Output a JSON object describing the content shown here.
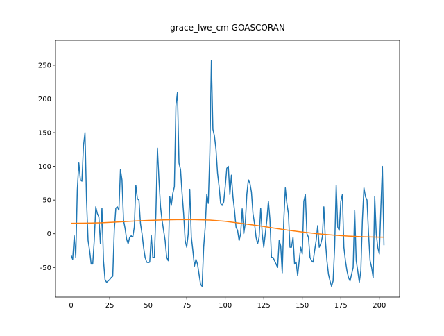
{
  "chart_data": {
    "type": "line",
    "title": "grace_lwe_cm GOASCORAN",
    "xlim": [
      -10.15,
      213.15
    ],
    "ylim": [
      -94,
      287
    ],
    "xticks": [
      0,
      25,
      50,
      75,
      100,
      125,
      150,
      175,
      200
    ],
    "yticks": [
      -50,
      0,
      50,
      100,
      150,
      200,
      250
    ],
    "series": [
      {
        "color": "#1f77b4",
        "x": [
          0,
          1,
          2,
          3,
          4,
          5,
          6,
          7,
          8,
          9,
          10,
          11,
          12,
          13,
          14,
          15,
          16,
          17,
          18,
          19,
          20,
          21,
          22,
          23,
          24,
          25,
          26,
          27,
          28,
          29,
          30,
          31,
          32,
          33,
          34,
          35,
          36,
          37,
          38,
          39,
          40,
          41,
          42,
          43,
          44,
          45,
          46,
          47,
          48,
          49,
          50,
          51,
          52,
          53,
          54,
          55,
          56,
          57,
          58,
          59,
          60,
          61,
          62,
          63,
          64,
          65,
          66,
          67,
          68,
          69,
          70,
          71,
          72,
          73,
          74,
          75,
          76,
          77,
          78,
          79,
          80,
          81,
          82,
          83,
          84,
          85,
          86,
          87,
          88,
          89,
          90,
          91,
          92,
          93,
          94,
          95,
          96,
          97,
          98,
          99,
          100,
          101,
          102,
          103,
          104,
          105,
          106,
          107,
          108,
          109,
          110,
          111,
          112,
          113,
          114,
          115,
          116,
          117,
          118,
          119,
          120,
          121,
          122,
          123,
          124,
          125,
          126,
          127,
          128,
          129,
          130,
          131,
          132,
          133,
          134,
          135,
          136,
          137,
          138,
          139,
          140,
          141,
          142,
          143,
          144,
          145,
          146,
          147,
          148,
          149,
          150,
          151,
          152,
          153,
          154,
          155,
          156,
          157,
          158,
          159,
          160,
          161,
          162,
          163,
          164,
          165,
          166,
          167,
          168,
          169,
          170,
          171,
          172,
          173,
          174,
          175,
          176,
          177,
          178,
          179,
          180,
          181,
          182,
          183,
          184,
          185,
          186,
          187,
          188,
          189,
          190,
          191,
          192,
          193,
          194,
          195,
          196,
          197,
          198,
          199,
          200,
          201,
          202,
          203
        ],
        "values": [
          -32,
          -38,
          -3,
          -35,
          65,
          105,
          80,
          78,
          130,
          150,
          50,
          -10,
          -25,
          -45,
          -45,
          -10,
          40,
          30,
          25,
          -15,
          38,
          -40,
          -68,
          -72,
          -70,
          -68,
          -65,
          -63,
          5,
          38,
          40,
          35,
          95,
          80,
          20,
          8,
          -8,
          -15,
          -5,
          -3,
          -5,
          10,
          72,
          52,
          50,
          15,
          0,
          -20,
          -35,
          -42,
          -43,
          -42,
          -2,
          -35,
          -35,
          30,
          127,
          80,
          40,
          20,
          5,
          -10,
          -35,
          -40,
          55,
          42,
          60,
          70,
          190,
          210,
          105,
          95,
          60,
          30,
          -10,
          -20,
          0,
          66,
          -5,
          -25,
          -48,
          -38,
          -45,
          -60,
          -75,
          -78,
          -20,
          10,
          58,
          45,
          120,
          257,
          155,
          145,
          125,
          90,
          70,
          45,
          42,
          47,
          70,
          97,
          100,
          58,
          87,
          55,
          35,
          10,
          5,
          -10,
          0,
          37,
          0,
          15,
          58,
          80,
          75,
          62,
          30,
          15,
          -5,
          -15,
          -5,
          38,
          0,
          -20,
          0,
          20,
          48,
          22,
          -35,
          -35,
          -40,
          -45,
          -50,
          -10,
          -18,
          -58,
          20,
          68,
          45,
          30,
          -20,
          -20,
          -5,
          -45,
          -42,
          -62,
          -40,
          -20,
          -30,
          48,
          58,
          0,
          -5,
          -35,
          -40,
          -42,
          -25,
          -10,
          12,
          -20,
          -15,
          -5,
          40,
          -10,
          -40,
          -60,
          -70,
          -78,
          -70,
          -20,
          72,
          10,
          5,
          48,
          58,
          -20,
          -40,
          -55,
          -65,
          -70,
          -60,
          -50,
          35,
          -40,
          -55,
          -72,
          -55,
          20,
          68,
          55,
          50,
          0,
          -40,
          -50,
          -65,
          55,
          0,
          -20,
          -30,
          40,
          100,
          -17
        ]
      },
      {
        "color": "#ff7f0e",
        "x": [
          0,
          10,
          20,
          30,
          40,
          50,
          60,
          70,
          80,
          90,
          100,
          110,
          120,
          130,
          140,
          150,
          160,
          170,
          180,
          190,
          200,
          203
        ],
        "values": [
          15.5,
          15.8,
          16.3,
          17.5,
          18.8,
          19.8,
          20.5,
          21,
          21,
          20.3,
          18.5,
          15.5,
          12.5,
          9,
          5.5,
          2.5,
          0,
          -2,
          -3.5,
          -4.5,
          -5,
          -5
        ]
      }
    ]
  }
}
